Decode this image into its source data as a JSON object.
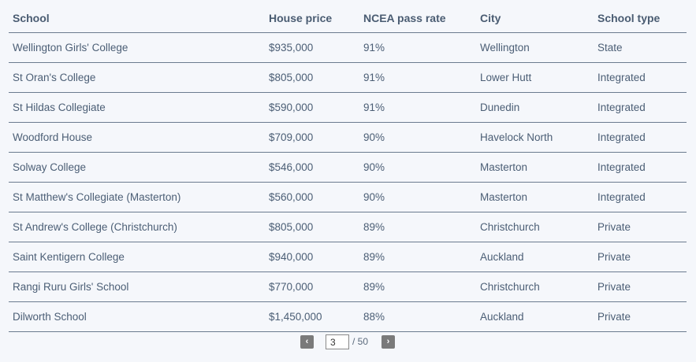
{
  "table": {
    "headers": [
      "School",
      "House price",
      "NCEA pass rate",
      "City",
      "School type"
    ],
    "rows": [
      [
        "Wellington Girls' College",
        "$935,000",
        "91%",
        "Wellington",
        "State"
      ],
      [
        "St Oran's College",
        "$805,000",
        "91%",
        "Lower Hutt",
        "Integrated"
      ],
      [
        "St Hildas Collegiate",
        "$590,000",
        "91%",
        "Dunedin",
        "Integrated"
      ],
      [
        "Woodford House",
        "$709,000",
        "90%",
        "Havelock North",
        "Integrated"
      ],
      [
        "Solway College",
        "$546,000",
        "90%",
        "Masterton",
        "Integrated"
      ],
      [
        "St Matthew's Collegiate (Masterton)",
        "$560,000",
        "90%",
        "Masterton",
        "Integrated"
      ],
      [
        "St Andrew's College (Christchurch)",
        "$805,000",
        "89%",
        "Christchurch",
        "Private"
      ],
      [
        "Saint Kentigern College",
        "$940,000",
        "89%",
        "Auckland",
        "Private"
      ],
      [
        "Rangi Ruru Girls' School",
        "$770,000",
        "89%",
        "Christchurch",
        "Private"
      ],
      [
        "Dilworth School",
        "$1,450,000",
        "88%",
        "Auckland",
        "Private"
      ]
    ]
  },
  "pagination": {
    "prev_label": "‹",
    "next_label": "›",
    "current_page": "3",
    "total_label": "/ 50"
  }
}
